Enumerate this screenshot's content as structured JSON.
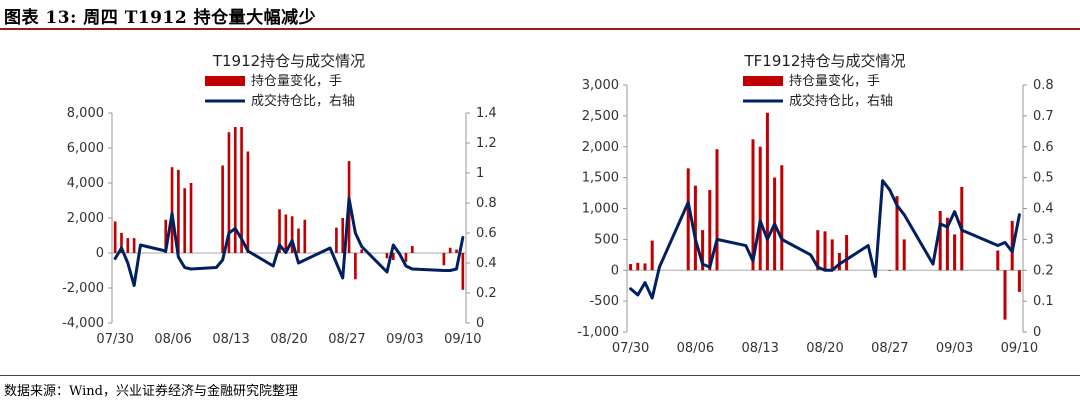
{
  "header": {
    "title": "图表 13:    周四 T1912 持仓量大幅减少"
  },
  "footer": {
    "source": "数据来源：Wind，兴业证券经济与金融研究院整理"
  },
  "colors": {
    "bar": "#c00000",
    "line": "#002060",
    "header_rule": "#9b1b1b"
  },
  "chart_data": [
    {
      "type": "bar+line",
      "title": "T1912持仓与成交情况",
      "legend": [
        "持仓量变化，手",
        "成交持仓比，右轴"
      ],
      "legend_position": "top-center",
      "grid": false,
      "x_tick_labels": [
        "07/30",
        "08/06",
        "08/13",
        "08/20",
        "08/27",
        "09/03",
        "09/10"
      ],
      "y_left": {
        "min": -4000,
        "max": 8000,
        "step": 2000,
        "tick_labels": [
          "-4,000",
          "-2,000",
          "0",
          "2,000",
          "4,000",
          "6,000",
          "8,000"
        ]
      },
      "y_right": {
        "min": 0,
        "max": 1.4,
        "step": 0.2,
        "tick_labels": [
          "0",
          "0.2",
          "0.4",
          "0.6",
          "0.8",
          "1",
          "1.2",
          "1.4"
        ]
      },
      "series": [
        {
          "name": "持仓量变化，手",
          "type": "bar",
          "axis": "left",
          "values": [
            1800,
            1150,
            850,
            850,
            null,
            null,
            null,
            null,
            1900,
            4900,
            4750,
            3700,
            4000,
            null,
            null,
            null,
            null,
            5000,
            6900,
            7200,
            7200,
            5800,
            null,
            null,
            null,
            null,
            2500,
            2200,
            2100,
            1400,
            1900,
            null,
            null,
            null,
            null,
            1450,
            2000,
            5250,
            -1500,
            200,
            null,
            null,
            null,
            -300,
            -400,
            -100,
            -500,
            400,
            null,
            null,
            null,
            null,
            -700,
            300,
            200,
            -2100
          ]
        },
        {
          "name": "成交持仓比，右轴",
          "type": "line",
          "axis": "right",
          "values": [
            0.43,
            0.5,
            0.4,
            0.25,
            0.52,
            null,
            null,
            null,
            0.48,
            0.73,
            0.44,
            0.37,
            0.36,
            null,
            null,
            null,
            0.37,
            0.42,
            0.6,
            0.63,
            0.56,
            0.48,
            null,
            null,
            null,
            0.38,
            0.52,
            0.47,
            0.55,
            0.4,
            0.42,
            null,
            null,
            null,
            0.5,
            0.4,
            0.3,
            0.83,
            0.6,
            0.51,
            null,
            null,
            null,
            0.34,
            0.52,
            0.46,
            0.38,
            0.36,
            null,
            null,
            null,
            null,
            0.35,
            0.35,
            0.36,
            0.57
          ]
        }
      ]
    },
    {
      "type": "bar+line",
      "title": "TF1912持仓与成交情况",
      "legend": [
        "持仓量变化，手",
        "成交持仓比，右轴"
      ],
      "legend_position": "top-center",
      "grid": false,
      "x_tick_labels": [
        "07/30",
        "08/06",
        "08/13",
        "08/20",
        "08/27",
        "09/03",
        "09/10"
      ],
      "y_left": {
        "min": -1000,
        "max": 3000,
        "step": 500,
        "tick_labels": [
          "-1,000",
          "-500",
          "0",
          "500",
          "1,000",
          "1,500",
          "2,000",
          "2,500",
          "3,000"
        ]
      },
      "y_right": {
        "min": 0,
        "max": 0.8,
        "step": 0.1,
        "tick_labels": [
          "0",
          "0.1",
          "0.2",
          "0.3",
          "0.4",
          "0.5",
          "0.6",
          "0.7",
          "0.8"
        ]
      },
      "series": [
        {
          "name": "持仓量变化，手",
          "type": "bar",
          "axis": "left",
          "values": [
            100,
            120,
            110,
            480,
            null,
            null,
            null,
            null,
            1650,
            1370,
            650,
            1300,
            1960,
            null,
            null,
            null,
            null,
            2120,
            2000,
            2550,
            1500,
            1700,
            null,
            null,
            null,
            null,
            650,
            630,
            500,
            280,
            570,
            null,
            null,
            null,
            null,
            null,
            0,
            1200,
            500,
            null,
            null,
            null,
            null,
            960,
            850,
            580,
            1350,
            null,
            null,
            null,
            null,
            320,
            -800,
            800,
            -350
          ]
        },
        {
          "name": "成交持仓比，右轴",
          "type": "line",
          "axis": "right",
          "values": [
            0.14,
            0.12,
            0.16,
            0.11,
            0.21,
            null,
            null,
            null,
            0.42,
            0.3,
            0.22,
            0.21,
            0.3,
            null,
            null,
            null,
            0.28,
            0.23,
            0.36,
            0.3,
            0.35,
            0.3,
            null,
            null,
            null,
            0.25,
            0.21,
            0.2,
            0.2,
            0.22,
            null,
            null,
            null,
            0.28,
            0.18,
            0.49,
            0.46,
            0.41,
            0.38,
            null,
            null,
            null,
            0.22,
            0.35,
            0.34,
            0.39,
            0.33,
            null,
            null,
            null,
            null,
            0.28,
            0.29,
            0.26,
            0.38
          ]
        }
      ]
    }
  ]
}
